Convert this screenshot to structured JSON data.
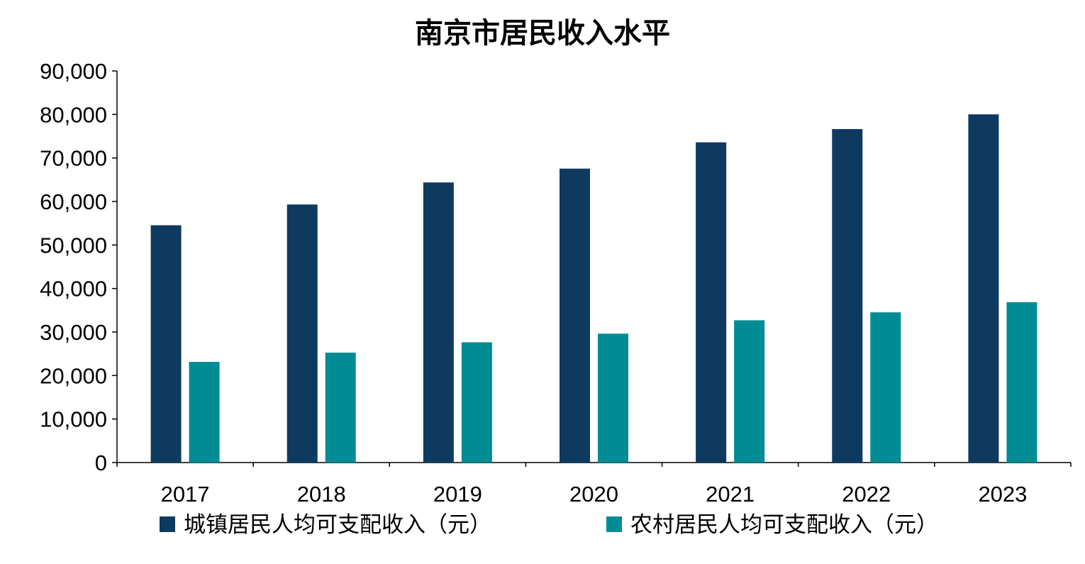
{
  "chart_data": {
    "type": "bar",
    "title": "南京市居民收入水平",
    "categories": [
      "2017",
      "2018",
      "2019",
      "2020",
      "2021",
      "2022",
      "2023"
    ],
    "series": [
      {
        "name": "城镇居民人均可支配收入（元）",
        "color": "#0e3a5f",
        "values": [
          54538,
          59308,
          64372,
          67553,
          73593,
          76643,
          80024
        ]
      },
      {
        "name": "农村居民人均可支配收入（元）",
        "color": "#008c95",
        "values": [
          23133,
          25263,
          27636,
          29621,
          32701,
          34528,
          36853
        ]
      }
    ],
    "ylim": [
      0,
      90000
    ],
    "yticks": [
      "0",
      "10,000",
      "20,000",
      "30,000",
      "40,000",
      "50,000",
      "60,000",
      "70,000",
      "80,000",
      "90,000"
    ],
    "grid": false,
    "legend": "bottom"
  }
}
